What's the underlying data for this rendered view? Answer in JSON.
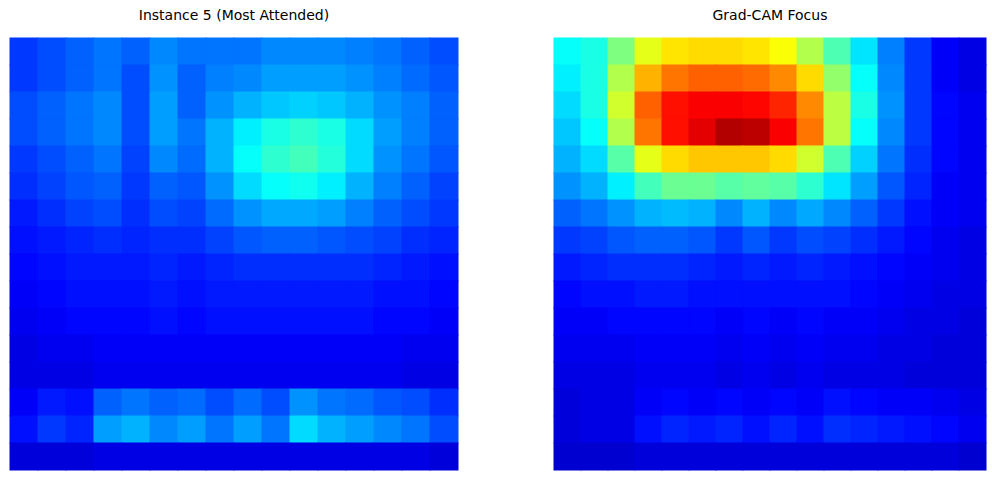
{
  "chart_data": [
    {
      "type": "heatmap",
      "title": "Instance 5 (Most Attended)",
      "tick_labels": false,
      "zlim": [
        0,
        1
      ],
      "cells": [
        [
          0.18,
          0.2,
          0.22,
          0.24,
          0.22,
          0.26,
          0.24,
          0.24,
          0.24,
          0.26,
          0.26,
          0.26,
          0.25,
          0.24,
          0.22,
          0.2
        ],
        [
          0.18,
          0.2,
          0.22,
          0.24,
          0.2,
          0.27,
          0.22,
          0.25,
          0.26,
          0.28,
          0.28,
          0.28,
          0.27,
          0.25,
          0.23,
          0.21
        ],
        [
          0.2,
          0.22,
          0.24,
          0.26,
          0.2,
          0.28,
          0.22,
          0.27,
          0.3,
          0.32,
          0.33,
          0.32,
          0.3,
          0.27,
          0.25,
          0.22
        ],
        [
          0.2,
          0.22,
          0.24,
          0.26,
          0.2,
          0.28,
          0.24,
          0.3,
          0.36,
          0.4,
          0.42,
          0.4,
          0.34,
          0.28,
          0.25,
          0.22
        ],
        [
          0.18,
          0.2,
          0.22,
          0.24,
          0.19,
          0.26,
          0.23,
          0.3,
          0.38,
          0.42,
          0.44,
          0.41,
          0.34,
          0.27,
          0.24,
          0.21
        ],
        [
          0.17,
          0.19,
          0.21,
          0.22,
          0.18,
          0.22,
          0.21,
          0.27,
          0.34,
          0.38,
          0.39,
          0.36,
          0.3,
          0.25,
          0.22,
          0.19
        ],
        [
          0.15,
          0.17,
          0.19,
          0.2,
          0.17,
          0.2,
          0.19,
          0.23,
          0.27,
          0.29,
          0.29,
          0.28,
          0.25,
          0.22,
          0.2,
          0.18
        ],
        [
          0.14,
          0.15,
          0.16,
          0.17,
          0.16,
          0.17,
          0.17,
          0.19,
          0.21,
          0.22,
          0.22,
          0.21,
          0.2,
          0.19,
          0.17,
          0.16
        ],
        [
          0.13,
          0.14,
          0.15,
          0.15,
          0.15,
          0.16,
          0.15,
          0.16,
          0.17,
          0.17,
          0.17,
          0.17,
          0.17,
          0.16,
          0.15,
          0.14
        ],
        [
          0.12,
          0.13,
          0.14,
          0.14,
          0.14,
          0.15,
          0.14,
          0.15,
          0.15,
          0.15,
          0.15,
          0.15,
          0.15,
          0.14,
          0.14,
          0.13
        ],
        [
          0.11,
          0.12,
          0.13,
          0.13,
          0.13,
          0.14,
          0.13,
          0.14,
          0.14,
          0.14,
          0.14,
          0.14,
          0.14,
          0.13,
          0.13,
          0.12
        ],
        [
          0.1,
          0.11,
          0.11,
          0.12,
          0.12,
          0.12,
          0.12,
          0.12,
          0.12,
          0.12,
          0.12,
          0.12,
          0.12,
          0.12,
          0.11,
          0.11
        ],
        [
          0.1,
          0.1,
          0.1,
          0.11,
          0.11,
          0.11,
          0.11,
          0.11,
          0.11,
          0.11,
          0.11,
          0.11,
          0.11,
          0.11,
          0.1,
          0.1
        ],
        [
          0.12,
          0.15,
          0.14,
          0.22,
          0.24,
          0.22,
          0.23,
          0.2,
          0.23,
          0.2,
          0.27,
          0.24,
          0.23,
          0.21,
          0.2,
          0.17
        ],
        [
          0.14,
          0.18,
          0.16,
          0.28,
          0.3,
          0.26,
          0.28,
          0.24,
          0.28,
          0.24,
          0.34,
          0.3,
          0.28,
          0.26,
          0.24,
          0.2
        ],
        [
          0.09,
          0.09,
          0.09,
          0.1,
          0.1,
          0.1,
          0.1,
          0.1,
          0.1,
          0.1,
          0.1,
          0.1,
          0.1,
          0.1,
          0.1,
          0.09
        ]
      ]
    },
    {
      "type": "heatmap",
      "title": "Grad-CAM Focus",
      "tick_labels": false,
      "zlim": [
        0,
        1
      ],
      "cells": [
        [
          0.38,
          0.4,
          0.5,
          0.6,
          0.65,
          0.66,
          0.66,
          0.65,
          0.62,
          0.55,
          0.45,
          0.35,
          0.25,
          0.18,
          0.12,
          0.1
        ],
        [
          0.36,
          0.4,
          0.55,
          0.7,
          0.76,
          0.78,
          0.78,
          0.77,
          0.74,
          0.66,
          0.52,
          0.38,
          0.26,
          0.18,
          0.12,
          0.1
        ],
        [
          0.34,
          0.4,
          0.58,
          0.78,
          0.86,
          0.88,
          0.88,
          0.87,
          0.84,
          0.74,
          0.56,
          0.4,
          0.27,
          0.18,
          0.13,
          0.11
        ],
        [
          0.32,
          0.38,
          0.55,
          0.76,
          0.86,
          0.9,
          0.95,
          0.94,
          0.88,
          0.76,
          0.56,
          0.38,
          0.26,
          0.18,
          0.13,
          0.11
        ],
        [
          0.3,
          0.34,
          0.46,
          0.6,
          0.66,
          0.68,
          0.68,
          0.68,
          0.66,
          0.58,
          0.45,
          0.33,
          0.24,
          0.17,
          0.13,
          0.11
        ],
        [
          0.27,
          0.3,
          0.36,
          0.44,
          0.48,
          0.48,
          0.46,
          0.47,
          0.46,
          0.42,
          0.35,
          0.28,
          0.21,
          0.16,
          0.12,
          0.11
        ],
        [
          0.22,
          0.24,
          0.27,
          0.3,
          0.31,
          0.3,
          0.26,
          0.3,
          0.26,
          0.29,
          0.26,
          0.22,
          0.18,
          0.14,
          0.12,
          0.11
        ],
        [
          0.18,
          0.19,
          0.21,
          0.22,
          0.22,
          0.21,
          0.18,
          0.21,
          0.18,
          0.2,
          0.19,
          0.17,
          0.15,
          0.13,
          0.11,
          0.1
        ],
        [
          0.15,
          0.16,
          0.17,
          0.17,
          0.17,
          0.16,
          0.15,
          0.16,
          0.15,
          0.16,
          0.15,
          0.14,
          0.13,
          0.12,
          0.11,
          0.1
        ],
        [
          0.13,
          0.14,
          0.14,
          0.15,
          0.15,
          0.14,
          0.14,
          0.14,
          0.14,
          0.14,
          0.14,
          0.13,
          0.12,
          0.11,
          0.1,
          0.1
        ],
        [
          0.12,
          0.12,
          0.13,
          0.13,
          0.13,
          0.13,
          0.12,
          0.13,
          0.12,
          0.13,
          0.12,
          0.12,
          0.11,
          0.1,
          0.1,
          0.09
        ],
        [
          0.11,
          0.11,
          0.11,
          0.12,
          0.12,
          0.12,
          0.11,
          0.12,
          0.11,
          0.12,
          0.11,
          0.11,
          0.1,
          0.1,
          0.09,
          0.09
        ],
        [
          0.1,
          0.1,
          0.1,
          0.11,
          0.11,
          0.11,
          0.1,
          0.11,
          0.1,
          0.11,
          0.1,
          0.1,
          0.1,
          0.09,
          0.09,
          0.09
        ],
        [
          0.09,
          0.1,
          0.1,
          0.12,
          0.13,
          0.12,
          0.13,
          0.12,
          0.13,
          0.12,
          0.14,
          0.13,
          0.12,
          0.12,
          0.11,
          0.1
        ],
        [
          0.09,
          0.1,
          0.1,
          0.14,
          0.16,
          0.15,
          0.16,
          0.14,
          0.16,
          0.14,
          0.17,
          0.16,
          0.15,
          0.14,
          0.13,
          0.11
        ],
        [
          0.08,
          0.08,
          0.08,
          0.09,
          0.09,
          0.09,
          0.09,
          0.09,
          0.09,
          0.09,
          0.09,
          0.09,
          0.09,
          0.09,
          0.09,
          0.08
        ]
      ]
    }
  ]
}
